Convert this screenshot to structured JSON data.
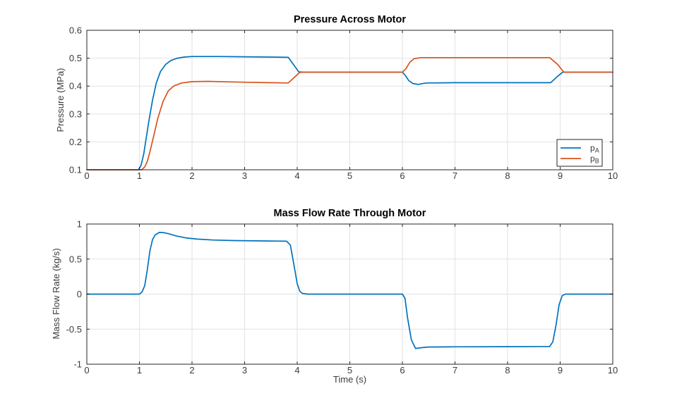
{
  "figure": {
    "background": "#ffffff",
    "axis_color": "#262626",
    "grid_color": "#e2e2e2",
    "tick_label_color": "#3b3b3b",
    "title_color": "#000000"
  },
  "chart_data": [
    {
      "type": "line",
      "title": "Pressure Across Motor",
      "xlabel": "",
      "ylabel": "Pressure (MPa)",
      "xlim": [
        0,
        10
      ],
      "ylim": [
        0.1,
        0.6
      ],
      "xticks": [
        0,
        1,
        2,
        3,
        4,
        5,
        6,
        7,
        8,
        9,
        10
      ],
      "yticks": [
        0.1,
        0.2,
        0.3,
        0.4,
        0.5,
        0.6
      ],
      "grid": true,
      "legend": {
        "location": "southeast",
        "entries": [
          {
            "text": "p",
            "sub": "A",
            "color": "#0072BD"
          },
          {
            "text": "p",
            "sub": "B",
            "color": "#D95319"
          }
        ]
      },
      "series": [
        {
          "name": "pA",
          "color": "#0072BD",
          "x": [
            0,
            0.98,
            1.03,
            1.08,
            1.13,
            1.18,
            1.25,
            1.32,
            1.4,
            1.5,
            1.6,
            1.72,
            1.85,
            2,
            2.5,
            3,
            3.5,
            3.83,
            4.03,
            4.1,
            5,
            6,
            6.06,
            6.12,
            6.2,
            6.3,
            6.45,
            7,
            8,
            8.82,
            8.95,
            9.05,
            9.5,
            10
          ],
          "y": [
            0.1,
            0.1,
            0.115,
            0.155,
            0.215,
            0.275,
            0.35,
            0.41,
            0.452,
            0.478,
            0.492,
            0.5,
            0.504,
            0.506,
            0.506,
            0.505,
            0.504,
            0.503,
            0.451,
            0.45,
            0.45,
            0.45,
            0.437,
            0.42,
            0.409,
            0.406,
            0.411,
            0.412,
            0.412,
            0.412,
            0.435,
            0.45,
            0.45,
            0.45
          ]
        },
        {
          "name": "pB",
          "color": "#D95319",
          "x": [
            0,
            1.04,
            1.1,
            1.15,
            1.2,
            1.27,
            1.35,
            1.45,
            1.55,
            1.65,
            1.8,
            2,
            2.3,
            3,
            3.5,
            3.83,
            4.05,
            4.12,
            5,
            6,
            6.07,
            6.14,
            6.22,
            6.35,
            7,
            8,
            8.8,
            8.95,
            9.07,
            9.5,
            10
          ],
          "y": [
            0.1,
            0.1,
            0.11,
            0.13,
            0.165,
            0.22,
            0.285,
            0.345,
            0.383,
            0.4,
            0.411,
            0.416,
            0.417,
            0.414,
            0.412,
            0.411,
            0.449,
            0.45,
            0.45,
            0.45,
            0.463,
            0.485,
            0.498,
            0.502,
            0.502,
            0.502,
            0.502,
            0.478,
            0.45,
            0.45,
            0.45
          ]
        }
      ]
    },
    {
      "type": "line",
      "title": "Mass Flow Rate Through Motor",
      "xlabel": "Time (s)",
      "ylabel": "Mass Flow Rate (kg/s)",
      "xlim": [
        0,
        10
      ],
      "ylim": [
        -1,
        1
      ],
      "xticks": [
        0,
        1,
        2,
        3,
        4,
        5,
        6,
        7,
        8,
        9,
        10
      ],
      "yticks": [
        -1,
        -0.5,
        0,
        0.5,
        1
      ],
      "grid": true,
      "series": [
        {
          "name": "mass-flow-rate",
          "color": "#0072BD",
          "x": [
            0,
            1,
            1.05,
            1.1,
            1.15,
            1.2,
            1.25,
            1.3,
            1.38,
            1.45,
            1.55,
            1.7,
            1.9,
            2.1,
            2.4,
            2.8,
            3.2,
            3.6,
            3.8,
            3.87,
            3.93,
            4,
            4.05,
            4.1,
            4.2,
            5,
            6,
            6.05,
            6.1,
            6.17,
            6.25,
            6.35,
            6.5,
            7,
            8,
            8.8,
            8.86,
            8.92,
            8.98,
            9.04,
            9.1,
            9.5,
            10
          ],
          "y": [
            0,
            0,
            0.03,
            0.12,
            0.35,
            0.62,
            0.78,
            0.845,
            0.88,
            0.878,
            0.862,
            0.83,
            0.8,
            0.785,
            0.772,
            0.764,
            0.76,
            0.757,
            0.755,
            0.7,
            0.45,
            0.15,
            0.04,
            0.01,
            0,
            0,
            0,
            -0.06,
            -0.35,
            -0.65,
            -0.775,
            -0.765,
            -0.755,
            -0.752,
            -0.75,
            -0.748,
            -0.68,
            -0.45,
            -0.15,
            -0.02,
            0,
            0,
            0
          ]
        }
      ]
    }
  ]
}
